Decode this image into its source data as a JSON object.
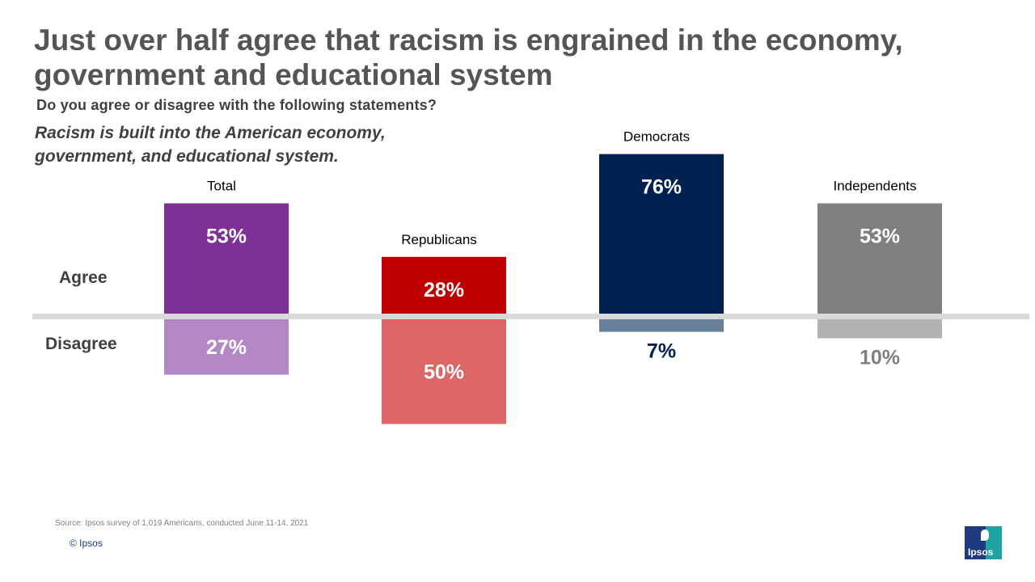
{
  "title": "Just over half agree that racism is engrained in the economy, government and educational system",
  "question": "Do you agree or disagree with the following statements?",
  "statement": "Racism is built into the American economy, government, and educational system.",
  "row_labels": {
    "agree": "Agree",
    "disagree": "Disagree"
  },
  "chart_data": {
    "type": "bar",
    "layout": "diverging-vertical",
    "categories": [
      "Total",
      "Republicans",
      "Democrats",
      "Independents"
    ],
    "series": [
      {
        "name": "Agree",
        "values": [
          53,
          28,
          76,
          53
        ],
        "labels": [
          "53%",
          "28%",
          "76%",
          "53%"
        ]
      },
      {
        "name": "Disagree",
        "values": [
          27,
          50,
          7,
          10
        ],
        "labels": [
          "27%",
          "50%",
          "7%",
          "10%"
        ]
      }
    ],
    "colors": {
      "agree": [
        "#7f3096",
        "#c00000",
        "#002050",
        "#7f7f7f"
      ],
      "disagree": [
        "#b488c5",
        "#dc6666",
        "#68809a",
        "#b2b2b2"
      ],
      "baseline": "#d9d9d9"
    },
    "unit": "%"
  },
  "footer": {
    "source": "Source: Ipsos survey of 1,019 Americans, conducted June 11-14, 2021",
    "copyright": "© Ipsos",
    "logo_text": "Ipsos"
  }
}
